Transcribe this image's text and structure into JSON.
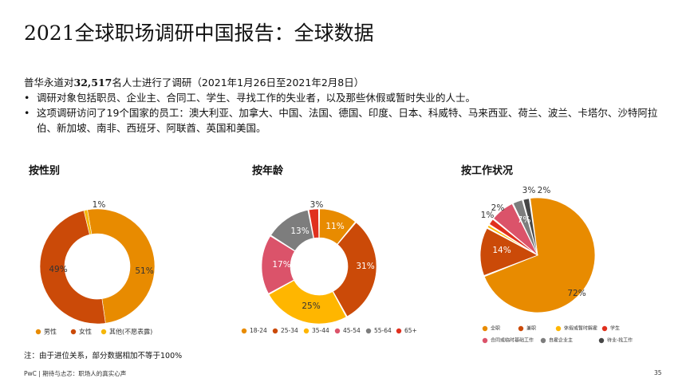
{
  "page": {
    "title": "2021全球职场调研中国报告：全球数据",
    "intro_prefix": "普华永道对",
    "intro_count": "32,517",
    "intro_suffix": "名人士进行了调研（2021年1月26日至2021年2月8日）",
    "bullets": [
      "调研对象包括职员、企业主、合同工、学生、寻找工作的失业者，以及那些休假或暂时失业的人士。",
      "这项调研访问了19个国家的员工：澳大利亚、加拿大、中国、法国、德国、印度、日本、科威特、马来西亚、荷兰、波兰、卡塔尔、沙特阿拉伯、新加坡、南非、西班牙、阿联酋、英国和美国。"
    ],
    "footnote": "注：由于进位关系，部分数据相加不等于100%",
    "footer": "PwC | 期待与忐忑：职场人的真实心声",
    "page_number": "35"
  },
  "chart_data": [
    {
      "type": "pie",
      "title": "按性别",
      "categories": [
        "男性",
        "女性",
        "其他(不愿表露)"
      ],
      "values": [
        51,
        49,
        1
      ],
      "labels": [
        "51%",
        "49%",
        "1%"
      ],
      "colors": [
        "#E88B00",
        "#CB4A08",
        "#F5B70A"
      ]
    },
    {
      "type": "pie",
      "title": "按年龄",
      "categories": [
        "18-24",
        "25-34",
        "35-44",
        "45-54",
        "55-64",
        "65+"
      ],
      "values": [
        11,
        31,
        25,
        17,
        13,
        3
      ],
      "labels": [
        "11%",
        "31%",
        "25%",
        "17%",
        "13%",
        "3%"
      ],
      "colors": [
        "#E88B00",
        "#CB4A08",
        "#FFB600",
        "#DB536A",
        "#7D7D7D",
        "#E0301E"
      ]
    },
    {
      "type": "pie",
      "title": "按工作状况",
      "categories": [
        "全职",
        "兼职",
        "休假或暂时解雇",
        "学生",
        "合同或临时基础工作",
        "自雇企业主",
        "待业-找工作"
      ],
      "values": [
        72,
        14,
        1,
        2,
        7,
        3,
        2
      ],
      "labels": [
        "72%",
        "14%",
        "1%",
        "2%",
        "7%",
        "3%",
        "2%"
      ],
      "colors": [
        "#E88B00",
        "#CB4A08",
        "#FFB600",
        "#E0301E",
        "#DB536A",
        "#7D7D7D",
        "#464646"
      ]
    }
  ]
}
